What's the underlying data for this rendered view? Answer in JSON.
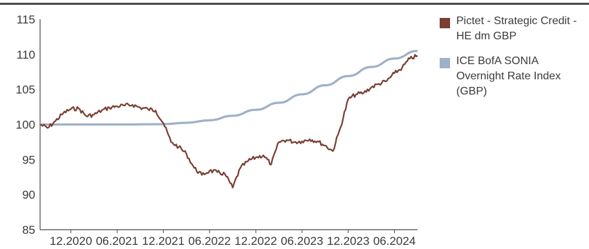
{
  "chart_data": {
    "type": "line",
    "title": "",
    "xlabel": "",
    "ylabel": "",
    "ylim": [
      85,
      115
    ],
    "xlim": [
      "2020-08",
      "2024-09"
    ],
    "yticks": [
      85,
      90,
      95,
      100,
      105,
      110,
      115
    ],
    "xtick_labels": [
      "12.2020",
      "06.2021",
      "12.2021",
      "06.2022",
      "12.2022",
      "06.2023",
      "12.2023",
      "06.2024"
    ],
    "grid": false,
    "legend_position": "right",
    "series": [
      {
        "name": "Pictet - Strategic Credit - HE dm GBP",
        "color": "#7a3e32",
        "x": [
          "2020-08",
          "2020-09",
          "2020-10",
          "2020-11",
          "2020-12",
          "2021-01",
          "2021-02",
          "2021-03",
          "2021-04",
          "2021-05",
          "2021-06",
          "2021-07",
          "2021-08",
          "2021-09",
          "2021-10",
          "2021-11",
          "2021-12",
          "2022-01",
          "2022-02",
          "2022-03",
          "2022-04",
          "2022-05",
          "2022-06",
          "2022-07",
          "2022-08",
          "2022-09",
          "2022-10",
          "2022-11",
          "2022-12",
          "2023-01",
          "2023-02",
          "2023-03",
          "2023-04",
          "2023-05",
          "2023-06",
          "2023-07",
          "2023-08",
          "2023-09",
          "2023-10",
          "2023-11",
          "2023-12",
          "2024-01",
          "2024-02",
          "2024-03",
          "2024-04",
          "2024-05",
          "2024-06",
          "2024-07",
          "2024-08",
          "2024-09"
        ],
        "y": [
          100.0,
          99.5,
          100.5,
          101.6,
          102.2,
          102.3,
          101.2,
          101.4,
          102.0,
          102.4,
          102.6,
          102.7,
          102.8,
          102.4,
          102.2,
          102.0,
          100.2,
          97.5,
          96.8,
          95.8,
          93.8,
          92.8,
          93.4,
          93.2,
          92.9,
          91.0,
          93.8,
          94.8,
          95.3,
          95.6,
          94.3,
          97.5,
          97.8,
          97.5,
          97.6,
          97.9,
          97.6,
          97.0,
          96.2,
          99.6,
          103.6,
          104.3,
          104.5,
          105.3,
          105.8,
          106.2,
          107.3,
          108.1,
          109.4,
          109.8
        ]
      },
      {
        "name": "ICE BofA SONIA Overnight Rate Index (GBP)",
        "color": "#9fb1c8",
        "x": [
          "2020-08",
          "2020-12",
          "2021-06",
          "2021-12",
          "2022-03",
          "2022-06",
          "2022-09",
          "2022-12",
          "2023-03",
          "2023-06",
          "2023-09",
          "2023-12",
          "2024-03",
          "2024-06",
          "2024-09"
        ],
        "y": [
          100.0,
          100.0,
          100.0,
          100.05,
          100.25,
          100.6,
          101.25,
          102.1,
          103.1,
          104.3,
          105.6,
          106.9,
          108.2,
          109.4,
          110.5
        ]
      }
    ]
  }
}
